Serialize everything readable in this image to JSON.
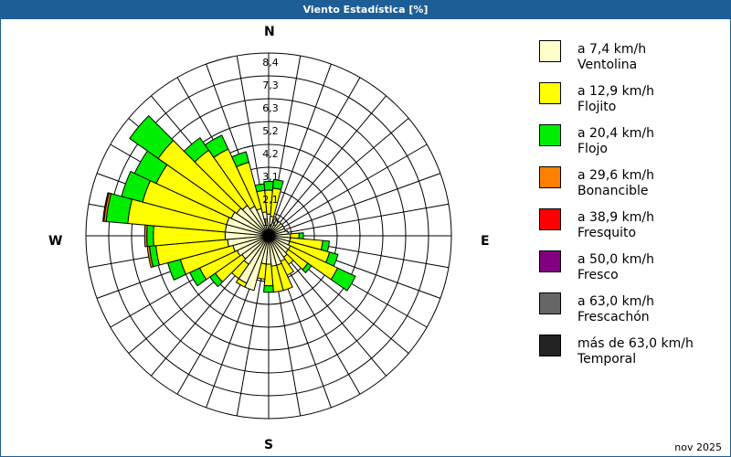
{
  "header": {
    "title": "Viento Estadística [%]"
  },
  "compass": {
    "n": "N",
    "e": "E",
    "s": "S",
    "w": "W"
  },
  "footer": {
    "date": "nov 2025"
  },
  "legend": [
    {
      "range": "a 7,4 km/h",
      "name": "Ventolina",
      "color": "#ffffcc"
    },
    {
      "range": "a 12,9 km/h",
      "name": "Flojito",
      "color": "#ffff00"
    },
    {
      "range": "a 20,4 km/h",
      "name": "Flojo",
      "color": "#00ee00"
    },
    {
      "range": "a 29,6 km/h",
      "name": "Bonancible",
      "color": "#ff8000"
    },
    {
      "range": "a 38,9 km/h",
      "name": "Fresquito",
      "color": "#ff0000"
    },
    {
      "range": "a 50,0 km/h",
      "name": "Fresco",
      "color": "#800080"
    },
    {
      "range": "a 63,0 km/h",
      "name": "Frescachón",
      "color": "#666666"
    },
    {
      "range": "más de 63,0 km/h",
      "name": "Temporal",
      "color": "#222222"
    }
  ],
  "chart_data": {
    "type": "wind-rose",
    "title": "Viento Estadística [%]",
    "radial_ticks": [
      "1,0",
      "2,1",
      "3,1",
      "4,2",
      "5,2",
      "6,3",
      "7,3",
      "8,4"
    ],
    "rmax": 8.4,
    "directions_deg": [
      0,
      10,
      20,
      30,
      40,
      50,
      60,
      70,
      80,
      90,
      100,
      110,
      120,
      130,
      140,
      150,
      160,
      170,
      180,
      190,
      200,
      210,
      220,
      230,
      240,
      250,
      260,
      270,
      280,
      290,
      300,
      310,
      320,
      330,
      340,
      350
    ],
    "series_cumulative": [
      {
        "name": "Ventolina",
        "values": [
          1.0,
          0.9,
          0.9,
          0.8,
          0.8,
          0.8,
          0.8,
          0.8,
          0.9,
          1.0,
          1.0,
          1.0,
          1.1,
          1.1,
          1.2,
          1.3,
          1.4,
          1.4,
          1.3,
          1.3,
          2.6,
          2.4,
          1.6,
          1.5,
          1.6,
          1.7,
          1.9,
          2.0,
          2.0,
          2.0,
          1.9,
          1.8,
          1.7,
          1.5,
          1.3,
          1.1
        ]
      },
      {
        "name": "Flojito",
        "values": [
          2.1,
          2.2,
          0.9,
          0.8,
          0.8,
          0.8,
          0.8,
          0.8,
          0.9,
          1.4,
          2.5,
          2.9,
          3.5,
          2.2,
          1.6,
          2.0,
          2.6,
          2.6,
          2.3,
          2.0,
          2.6,
          2.6,
          2.4,
          3.0,
          3.5,
          4.2,
          5.2,
          5.3,
          6.5,
          6.0,
          5.7,
          6.2,
          4.8,
          4.4,
          3.5,
          2.1
        ]
      },
      {
        "name": "Flojo",
        "values": [
          2.5,
          2.6,
          0.9,
          0.8,
          0.8,
          0.8,
          0.8,
          0.8,
          0.9,
          1.6,
          2.8,
          3.3,
          4.4,
          2.4,
          1.6,
          2.0,
          2.6,
          2.6,
          2.6,
          2.0,
          2.6,
          2.6,
          2.4,
          3.3,
          4.0,
          4.8,
          5.5,
          5.6,
          7.5,
          7.0,
          6.8,
          7.8,
          5.5,
          5.1,
          4.0,
          2.4
        ]
      },
      {
        "name": "Bonancible",
        "values": [
          2.5,
          2.6,
          0.9,
          0.8,
          0.8,
          0.8,
          0.8,
          0.8,
          0.9,
          1.6,
          2.8,
          3.3,
          4.4,
          2.4,
          1.6,
          2.0,
          2.6,
          2.6,
          2.6,
          2.0,
          2.6,
          2.6,
          2.4,
          3.3,
          4.0,
          4.8,
          5.6,
          5.7,
          7.6,
          7.0,
          6.8,
          7.8,
          5.5,
          5.1,
          4.0,
          2.4
        ]
      },
      {
        "name": "Fresquito",
        "values": [
          2.5,
          2.6,
          0.9,
          0.8,
          0.8,
          0.8,
          0.8,
          0.8,
          0.9,
          1.6,
          2.8,
          3.3,
          4.4,
          2.4,
          1.6,
          2.0,
          2.6,
          2.6,
          2.6,
          2.0,
          2.6,
          2.6,
          2.4,
          3.3,
          4.0,
          4.8,
          5.6,
          5.7,
          7.65,
          7.0,
          6.8,
          7.8,
          5.5,
          5.1,
          4.0,
          2.4
        ]
      }
    ],
    "legend_position": "right",
    "grid": true
  }
}
